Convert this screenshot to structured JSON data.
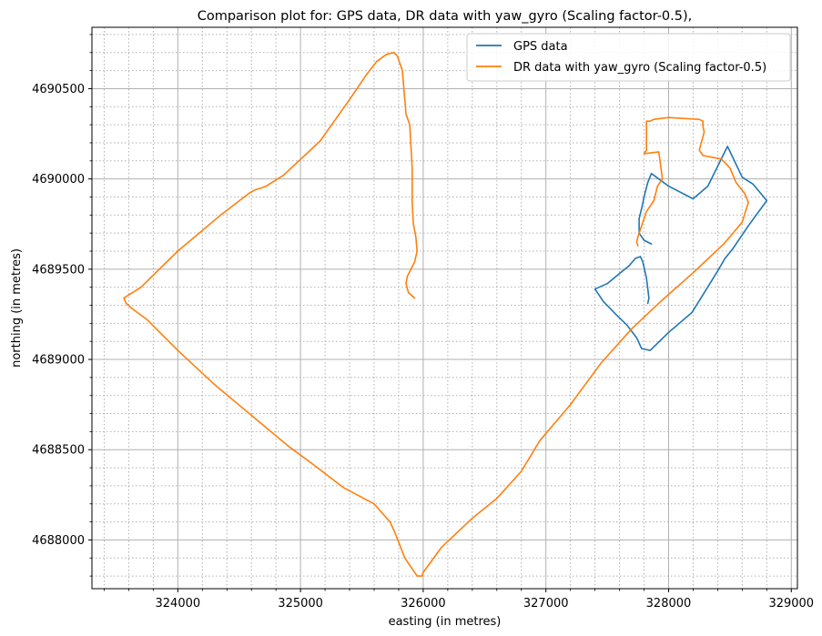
{
  "chart_data": {
    "type": "line",
    "title": "Comparison plot for: GPS data, DR data with yaw_gyro (Scaling factor-0.5),",
    "xlabel": "easting (in metres)",
    "ylabel": "northing (in metres)",
    "xlim": [
      323300,
      329050
    ],
    "ylim": [
      4687730,
      4690840
    ],
    "xticks": [
      324000,
      325000,
      326000,
      327000,
      328000,
      329000
    ],
    "yticks": [
      4688000,
      4688500,
      4689000,
      4689500,
      4690000,
      4690500
    ],
    "x_minor_step": 200,
    "y_minor_step": 100,
    "grid": {
      "major": true,
      "minor": true,
      "major_style": "solid",
      "minor_style": "dotted"
    },
    "legend_position": "top-right",
    "colors": {
      "gps": "#1f77b4",
      "dr": "#ff7f0e",
      "grid": "#b0b0b0"
    },
    "series": [
      {
        "name": "GPS data",
        "color": "#1f77b4",
        "x": [
          327830,
          327840,
          327820,
          327790,
          327770,
          327730,
          327680,
          327590,
          327500,
          327400,
          327470,
          327570,
          327660,
          327740,
          327780,
          327850,
          328000,
          328190,
          328300,
          328400,
          328460,
          328520,
          328650,
          328800,
          328690,
          328600,
          328480,
          328320,
          328200,
          328000,
          327860,
          327830,
          327800,
          327785,
          327760,
          327760,
          327800,
          327860
        ],
        "y": [
          4689310,
          4689340,
          4689450,
          4689540,
          4689570,
          4689560,
          4689520,
          4689470,
          4689420,
          4689390,
          4689320,
          4689250,
          4689190,
          4689120,
          4689060,
          4689050,
          4689150,
          4689260,
          4689380,
          4689490,
          4689560,
          4689610,
          4689740,
          4689880,
          4689970,
          4690010,
          4690180,
          4689960,
          4689890,
          4689960,
          4690030,
          4689980,
          4689900,
          4689850,
          4689780,
          4689700,
          4689660,
          4689640
        ]
      },
      {
        "name": "DR data with yaw_gyro (Scaling factor-0.5)",
        "color": "#ff7f0e",
        "x": [
          325930,
          325880,
          325860,
          325870,
          325930,
          325950,
          325940,
          325920,
          325910,
          325910,
          325890,
          325860,
          325830,
          325790,
          325760,
          325700,
          325620,
          325540,
          325400,
          325160,
          324860,
          324720,
          324680,
          324630,
          324580,
          324350,
          324000,
          323700,
          323560,
          323580,
          323630,
          323750,
          324000,
          324300,
          324600,
          324900,
          325100,
          325350,
          325600,
          325730,
          325770,
          325850,
          325950,
          325990,
          326000,
          326150,
          326400,
          326600,
          326800,
          326950,
          327200,
          327450,
          327700,
          327950,
          328200,
          328450,
          328600,
          328650,
          328620,
          328550,
          328500,
          328460,
          328430,
          328280,
          328250,
          328290,
          328280,
          328280,
          328250,
          328000,
          327880,
          327850,
          327820,
          327820,
          327800,
          327920,
          327950,
          327910,
          327880,
          327820,
          327770,
          327750,
          327740,
          327750
        ],
        "y": [
          4689340,
          4689370,
          4689420,
          4689460,
          4689540,
          4689600,
          4689680,
          4689750,
          4689870,
          4690060,
          4690300,
          4690360,
          4690600,
          4690680,
          4690700,
          4690690,
          4690650,
          4690580,
          4690440,
          4690210,
          4690020,
          4689960,
          4689950,
          4689940,
          4689920,
          4689800,
          4689600,
          4689400,
          4689340,
          4689310,
          4689280,
          4689220,
          4689050,
          4688860,
          4688690,
          4688520,
          4688420,
          4688290,
          4688200,
          4688100,
          4688040,
          4687900,
          4687800,
          4687800,
          4687820,
          4687960,
          4688120,
          4688230,
          4688380,
          4688550,
          4688750,
          4688980,
          4689170,
          4689330,
          4689480,
          4689640,
          4689760,
          4689870,
          4689920,
          4689980,
          4690060,
          4690090,
          4690110,
          4690130,
          4690160,
          4690260,
          4690290,
          4690320,
          4690330,
          4690340,
          4690330,
          4690320,
          4690320,
          4690160,
          4690140,
          4690150,
          4690000,
          4689960,
          4689880,
          4689820,
          4689720,
          4689680,
          4689650,
          4689630
        ]
      }
    ]
  }
}
